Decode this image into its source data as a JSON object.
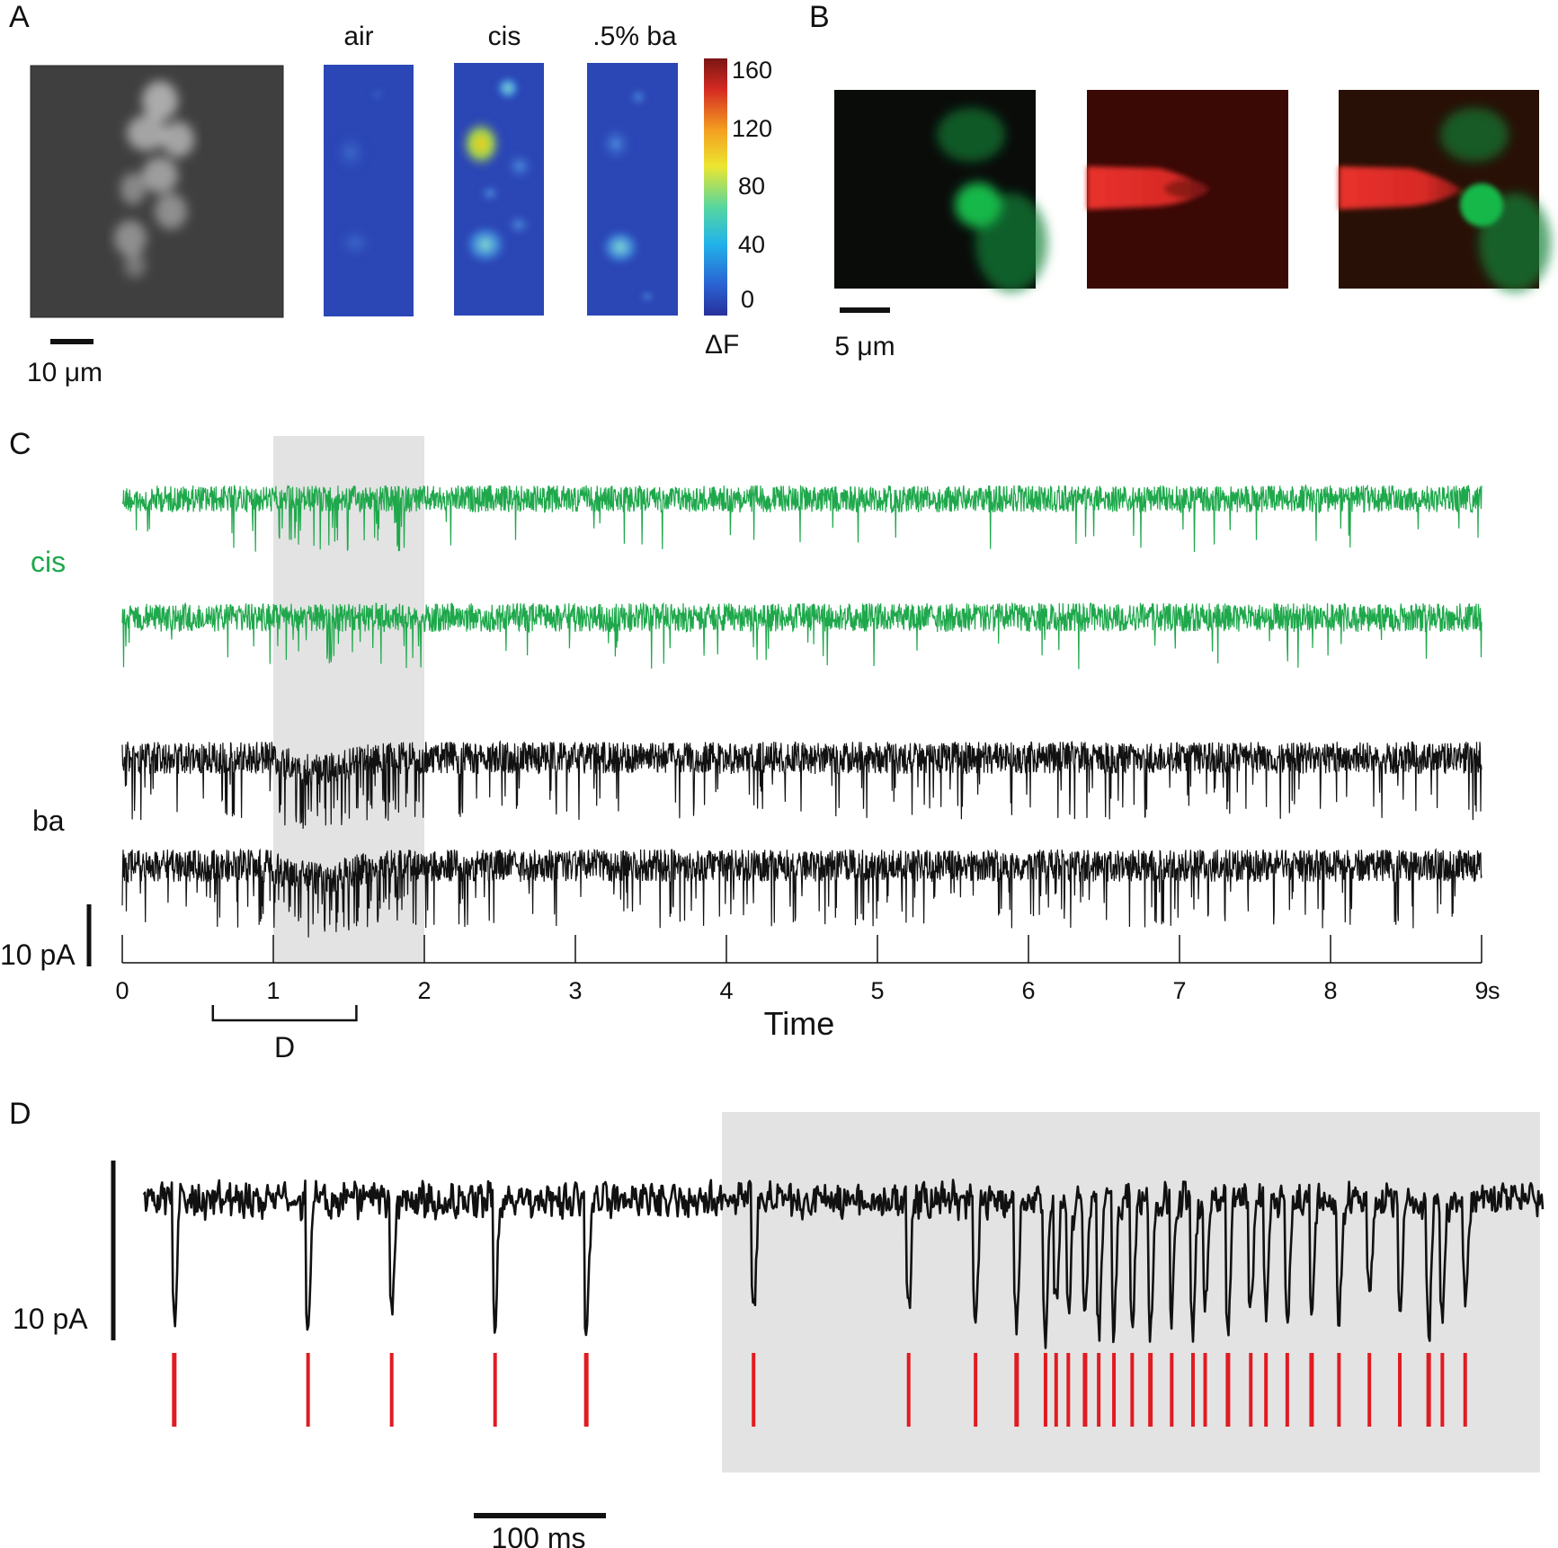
{
  "panels": {
    "a": {
      "letter": "A",
      "image_titles": [
        "air",
        "cis",
        ".5% ba"
      ],
      "colorbar": {
        "ticks": [
          "160",
          "120",
          "80",
          "40",
          "0"
        ],
        "unit": "ΔF"
      },
      "scalebar": "10 μm"
    },
    "b": {
      "letter": "B",
      "scalebar": "5 μm"
    },
    "c": {
      "letter": "C",
      "label_cis": "cis",
      "label_ba": "ba",
      "scalebar": "10 pA",
      "xlabel": "Time",
      "xticks": [
        "0",
        "1",
        "2",
        "3",
        "4",
        "5",
        "6",
        "7",
        "8",
        "9"
      ],
      "x_unit": "s",
      "bracket_label": "D",
      "stimulus_window_s": [
        1,
        2
      ],
      "bracket_window_s": [
        0.6,
        1.55
      ],
      "colors": {
        "cis": "#1ea84b",
        "ba": "#111111",
        "stim": "#e3e3e3"
      }
    },
    "d": {
      "letter": "D",
      "scalebar": "10 pA",
      "time_scalebar": "100 ms",
      "colors": {
        "trace": "#111111",
        "events": "#e11b22",
        "stim": "#e3e3e3"
      }
    }
  },
  "chart_data": [
    {
      "type": "line",
      "panel": "C",
      "title": "",
      "xlabel": "Time",
      "x_unit": "s",
      "xlim": [
        0,
        9
      ],
      "series": [
        {
          "name": "cis",
          "trace_count": 2,
          "shaded_interval_s": [
            1,
            2
          ]
        },
        {
          "name": "ba",
          "trace_count": 2,
          "shaded_interval_s": [
            1,
            2
          ]
        }
      ]
    },
    {
      "type": "line",
      "panel": "D",
      "title": "",
      "x_unit": "ms",
      "scale_bars": {
        "y": "10 pA",
        "x": "100 ms"
      },
      "event_times_ms": [
        20,
        108,
        163,
        231,
        291,
        401,
        503,
        547,
        574,
        593,
        600,
        608,
        619,
        628,
        638,
        650,
        662,
        676,
        690,
        698,
        713,
        728,
        738,
        752,
        768,
        786,
        806,
        826,
        845,
        854,
        869
      ]
    }
  ]
}
